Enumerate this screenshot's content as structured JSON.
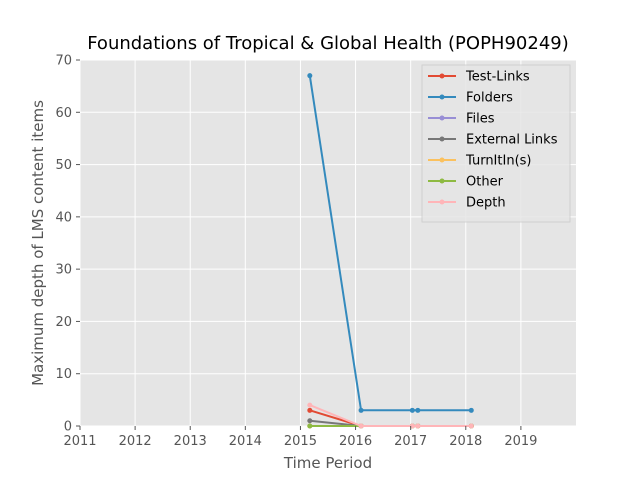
{
  "chart_data": {
    "type": "line",
    "title": "Foundations of Tropical & Global Health (POPH90249)",
    "xlabel": "Time Period",
    "ylabel": "Maximum depth of LMS content items",
    "xlim": [
      2011,
      2020
    ],
    "ylim": [
      0,
      70
    ],
    "xticks": [
      2011,
      2012,
      2013,
      2014,
      2015,
      2016,
      2017,
      2018,
      2019
    ],
    "yticks": [
      0,
      10,
      20,
      30,
      40,
      50,
      60,
      70
    ],
    "grid": true,
    "legend_position": "top-right",
    "x": [
      2015.17,
      2016.1,
      2017.03,
      2017.13,
      2018.1
    ],
    "series": [
      {
        "name": "Test-Links",
        "color": "#E24A33",
        "values": [
          3,
          0,
          0,
          0,
          0
        ]
      },
      {
        "name": "Folders",
        "color": "#348ABD",
        "values": [
          67,
          3,
          3,
          3,
          3
        ]
      },
      {
        "name": "Files",
        "color": "#988ED5",
        "values": [
          0,
          0,
          0,
          0,
          0
        ]
      },
      {
        "name": "External Links",
        "color": "#777777",
        "values": [
          1,
          0,
          0,
          0,
          0
        ]
      },
      {
        "name": "TurnItIn(s)",
        "color": "#FBC15E",
        "values": [
          0,
          0,
          0,
          0,
          0
        ]
      },
      {
        "name": "Other",
        "color": "#8EBA42",
        "values": [
          0,
          0,
          0,
          0,
          0
        ]
      },
      {
        "name": "Depth",
        "color": "#FFB5B8",
        "values": [
          4,
          0,
          0,
          0,
          0
        ]
      }
    ]
  }
}
